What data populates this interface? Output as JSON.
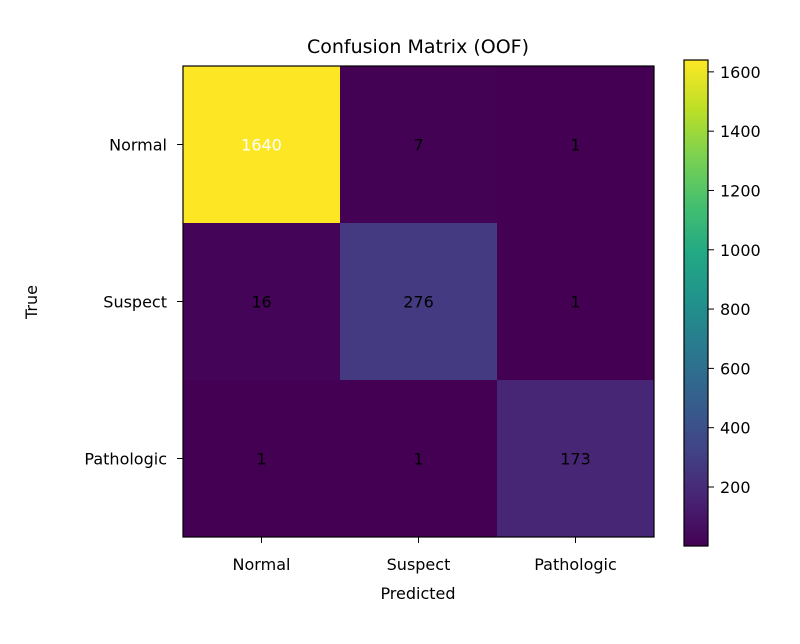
{
  "chart_data": {
    "type": "heatmap",
    "title": "Confusion Matrix (OOF)",
    "xlabel": "Predicted",
    "ylabel": "True",
    "x_categories": [
      "Normal",
      "Suspect",
      "Pathologic"
    ],
    "y_categories": [
      "Normal",
      "Suspect",
      "Pathologic"
    ],
    "values": [
      [
        1640,
        7,
        1
      ],
      [
        16,
        276,
        1
      ],
      [
        1,
        1,
        173
      ]
    ],
    "colormap": "viridis",
    "color_range": [
      1,
      1640
    ],
    "colorbar": {
      "ticks": [
        200,
        400,
        600,
        800,
        1000,
        1200,
        1400,
        1600
      ],
      "tick_labels": [
        "200",
        "400",
        "600",
        "800",
        "1000",
        "1200",
        "1400",
        "1600"
      ]
    },
    "grid": false
  }
}
